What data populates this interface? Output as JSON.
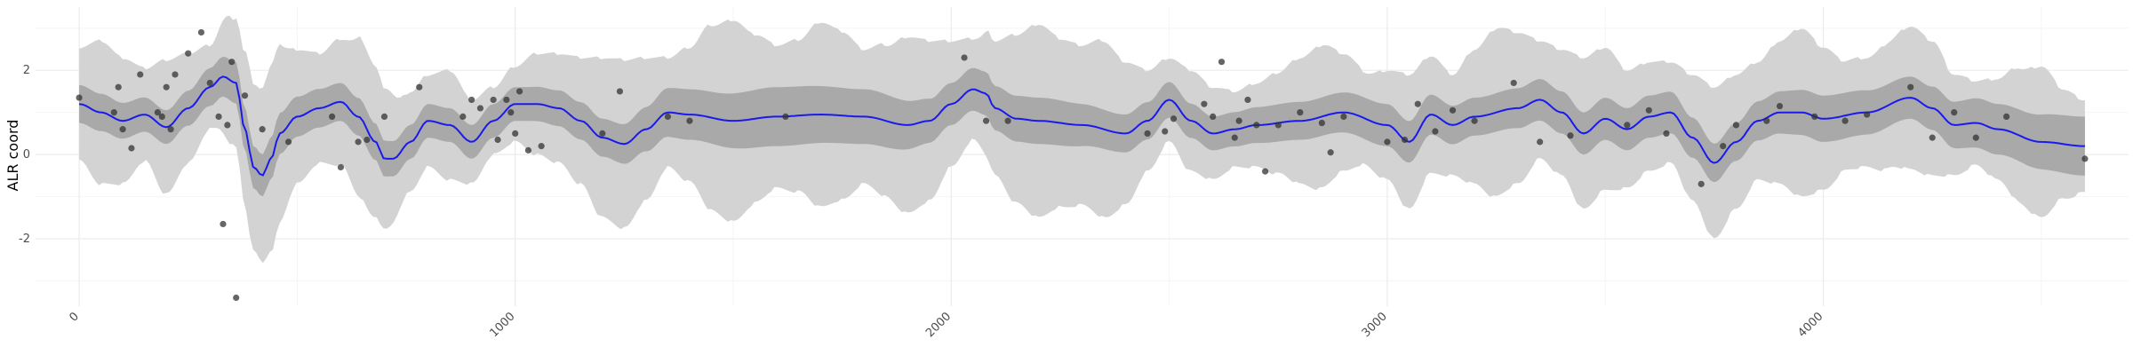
{
  "chart_data": {
    "type": "line",
    "title": "",
    "xlabel": "",
    "ylabel": "ALR coord",
    "xlim": [
      -100,
      4700
    ],
    "ylim": [
      -3.6,
      3.5
    ],
    "x_ticks": [
      0,
      1000,
      2000,
      3000,
      4000
    ],
    "y_ticks": [
      -2,
      0,
      2
    ],
    "grid": true,
    "legend": "none",
    "colors": {
      "mean_line": "#1a1aee",
      "inner_band": "#a9a9a9",
      "outer_band": "#d3d3d3",
      "points": "#333333",
      "grid_major": "#ebebeb",
      "grid_minor": "#f5f5f5"
    },
    "series": [
      {
        "kind": "mean",
        "x": [
          0,
          50,
          100,
          150,
          200,
          250,
          300,
          330,
          360,
          380,
          400,
          420,
          440,
          460,
          500,
          550,
          600,
          640,
          680,
          700,
          720,
          760,
          800,
          850,
          900,
          950,
          1000,
          1050,
          1100,
          1150,
          1200,
          1250,
          1300,
          1350,
          1400,
          1500,
          1600,
          1700,
          1800,
          1900,
          1950,
          2000,
          2050,
          2080,
          2100,
          2150,
          2200,
          2300,
          2400,
          2450,
          2500,
          2550,
          2600,
          2650,
          2700,
          2800,
          2900,
          3000,
          3050,
          3100,
          3150,
          3200,
          3300,
          3350,
          3400,
          3450,
          3500,
          3550,
          3600,
          3650,
          3700,
          3750,
          3800,
          3850,
          3900,
          3950,
          4000,
          4100,
          4200,
          4250,
          4300,
          4350,
          4400,
          4500,
          4600
        ],
        "y": [
          1.2,
          1.0,
          0.8,
          0.95,
          0.65,
          1.1,
          1.6,
          1.85,
          1.7,
          0.6,
          -0.3,
          -0.5,
          -0.1,
          0.5,
          0.9,
          1.1,
          1.25,
          0.9,
          0.3,
          -0.1,
          -0.1,
          0.3,
          0.8,
          0.7,
          0.3,
          0.8,
          1.2,
          1.2,
          1.1,
          0.8,
          0.4,
          0.25,
          0.6,
          1.0,
          0.95,
          0.8,
          0.9,
          0.95,
          0.9,
          0.7,
          0.8,
          1.2,
          1.55,
          1.45,
          1.1,
          0.85,
          0.8,
          0.7,
          0.5,
          0.8,
          1.3,
          0.8,
          0.5,
          0.6,
          0.7,
          0.8,
          1.0,
          0.7,
          0.3,
          0.95,
          0.7,
          0.9,
          1.1,
          1.3,
          1.0,
          0.5,
          0.85,
          0.6,
          0.9,
          1.0,
          0.4,
          -0.2,
          0.3,
          0.8,
          1.0,
          1.0,
          0.85,
          1.0,
          1.35,
          1.1,
          0.7,
          0.75,
          0.6,
          0.3,
          0.2
        ]
      },
      {
        "kind": "inner_band_half_width",
        "x": [
          0,
          200,
          400,
          600,
          800,
          1000,
          1200,
          1400,
          1600,
          1800,
          2000,
          2200,
          2400,
          2600,
          2800,
          3000,
          3200,
          3400,
          3600,
          3800,
          4000,
          4200,
          4400,
          4600
        ],
        "y": [
          0.45,
          0.4,
          0.5,
          0.45,
          0.4,
          0.4,
          0.45,
          0.6,
          0.7,
          0.65,
          0.5,
          0.55,
          0.45,
          0.4,
          0.45,
          0.5,
          0.45,
          0.5,
          0.5,
          0.45,
          0.55,
          0.5,
          0.6,
          0.7
        ]
      },
      {
        "kind": "outer_band_half_width",
        "x": [
          0,
          50,
          100,
          150,
          200,
          250,
          300,
          350,
          400,
          450,
          500,
          550,
          600,
          650,
          700,
          750,
          800,
          850,
          900,
          950,
          1000,
          1050,
          1100,
          1150,
          1200,
          1250,
          1300,
          1350,
          1400,
          1450,
          1500,
          1550,
          1600,
          1650,
          1700,
          1750,
          1800,
          1850,
          1900,
          1950,
          2000,
          2050,
          2100,
          2150,
          2200,
          2250,
          2300,
          2350,
          2400,
          2450,
          2500,
          2550,
          2600,
          2650,
          2700,
          2750,
          2800,
          2850,
          2900,
          2950,
          3000,
          3050,
          3100,
          3150,
          3200,
          3250,
          3300,
          3350,
          3400,
          3450,
          3500,
          3550,
          3600,
          3650,
          3700,
          3750,
          3800,
          3850,
          3900,
          3950,
          4000,
          4050,
          4100,
          4150,
          4200,
          4250,
          4300,
          4350,
          4400,
          4450,
          4500,
          4550,
          4600
        ],
        "y": [
          1.35,
          1.7,
          1.5,
          1.1,
          1.6,
          1.3,
          1.0,
          1.5,
          2.0,
          2.2,
          1.6,
          1.3,
          1.5,
          1.9,
          1.7,
          1.2,
          1.1,
          1.3,
          1.0,
          0.8,
          0.9,
          1.2,
          1.3,
          1.5,
          1.9,
          2.0,
          1.7,
          1.3,
          1.6,
          2.2,
          2.4,
          2.0,
          1.7,
          1.8,
          2.2,
          2.0,
          1.6,
          1.8,
          2.1,
          1.9,
          1.5,
          1.2,
          1.6,
          2.0,
          2.3,
          2.0,
          1.9,
          2.1,
          1.7,
          1.2,
          1.0,
          1.2,
          1.1,
          0.9,
          1.0,
          1.2,
          1.5,
          1.7,
          1.4,
          1.1,
          1.3,
          1.6,
          1.4,
          1.2,
          1.6,
          2.0,
          1.8,
          1.4,
          1.5,
          1.8,
          1.7,
          1.4,
          1.3,
          1.2,
          1.5,
          1.8,
          1.6,
          1.4,
          1.7,
          2.0,
          1.7,
          1.3,
          1.3,
          1.5,
          1.7,
          1.6,
          1.2,
          1.0,
          1.2,
          1.6,
          1.8,
          1.3,
          1.1
        ]
      },
      {
        "kind": "observed_points",
        "x": [
          0,
          80,
          90,
          100,
          120,
          140,
          180,
          190,
          200,
          210,
          220,
          250,
          280,
          300,
          320,
          330,
          340,
          350,
          360,
          380,
          420,
          480,
          580,
          600,
          640,
          660,
          700,
          780,
          880,
          900,
          920,
          950,
          960,
          980,
          990,
          1000,
          1010,
          1030,
          1060,
          1200,
          1240,
          1350,
          1400,
          1620,
          2030,
          2080,
          2130,
          2450,
          2490,
          2510,
          2580,
          2600,
          2620,
          2650,
          2660,
          2680,
          2700,
          2720,
          2750,
          2800,
          2850,
          2870,
          2900,
          3000,
          3040,
          3070,
          3110,
          3150,
          3200,
          3290,
          3350,
          3420,
          3550,
          3600,
          3640,
          3720,
          3770,
          3800,
          3870,
          3900,
          3980,
          4050,
          4100,
          4200,
          4250,
          4300,
          4350,
          4420,
          4600
        ],
        "y": [
          1.35,
          1.0,
          1.6,
          0.6,
          0.15,
          1.9,
          1.0,
          0.9,
          1.6,
          0.6,
          1.9,
          2.4,
          2.9,
          1.7,
          0.9,
          -1.65,
          0.7,
          2.2,
          -3.4,
          1.4,
          0.6,
          0.3,
          0.9,
          -0.3,
          0.3,
          0.35,
          0.9,
          1.6,
          0.9,
          1.3,
          1.1,
          1.3,
          0.35,
          1.3,
          1.0,
          0.5,
          1.5,
          0.1,
          0.2,
          0.5,
          1.5,
          0.9,
          0.8,
          0.9,
          2.3,
          0.8,
          0.8,
          0.5,
          0.55,
          0.85,
          1.2,
          0.9,
          2.2,
          0.4,
          0.8,
          1.3,
          0.7,
          -0.4,
          0.7,
          1.0,
          0.75,
          0.05,
          0.9,
          0.3,
          0.35,
          1.2,
          0.55,
          1.05,
          0.8,
          1.7,
          0.3,
          0.45,
          0.7,
          1.05,
          0.5,
          -0.7,
          0.2,
          0.7,
          0.8,
          1.15,
          0.9,
          0.8,
          0.95,
          1.6,
          0.4,
          1.0,
          0.4,
          0.9,
          -0.1
        ]
      }
    ]
  }
}
